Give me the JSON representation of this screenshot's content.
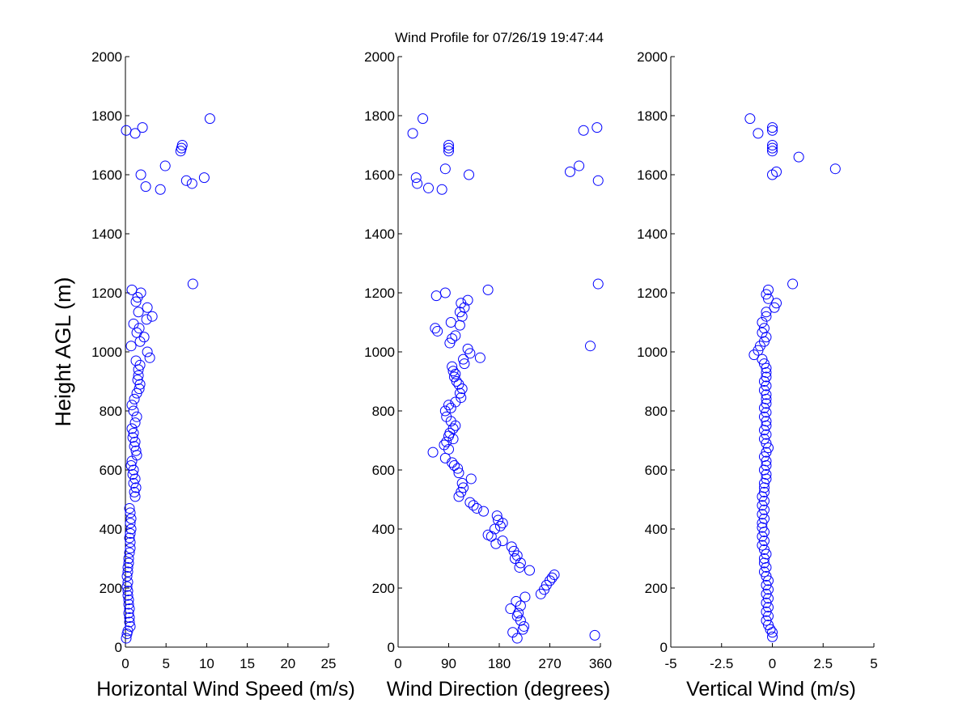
{
  "figure": {
    "title": "Wind Profile for  07/26/19 19:47:44"
  },
  "colors": {
    "marker": "#0000ff",
    "axis": "#000000",
    "background": "#ffffff"
  },
  "chart_data": [
    {
      "type": "scatter",
      "marker": "open-circle",
      "xlabel": "Horizontal Wind Speed (m/s)",
      "ylabel": "Height AGL (m)",
      "xlim": [
        0,
        25
      ],
      "ylim": [
        0,
        2000
      ],
      "xticks": [
        "0",
        "5",
        "10",
        "15",
        "20",
        "25"
      ],
      "yticks": [
        "0",
        "200",
        "400",
        "600",
        "800",
        "1000",
        "1200",
        "1400",
        "1600",
        "1800",
        "2000"
      ],
      "grid": false,
      "points": [
        [
          0.1,
          30
        ],
        [
          0.2,
          45
        ],
        [
          0.3,
          55
        ],
        [
          0.6,
          70
        ],
        [
          0.5,
          85
        ],
        [
          0.5,
          100
        ],
        [
          0.4,
          115
        ],
        [
          0.5,
          130
        ],
        [
          0.4,
          145
        ],
        [
          0.4,
          160
        ],
        [
          0.3,
          175
        ],
        [
          0.3,
          190
        ],
        [
          0.2,
          205
        ],
        [
          0.3,
          220
        ],
        [
          0.2,
          240
        ],
        [
          0.3,
          255
        ],
        [
          0.3,
          270
        ],
        [
          0.4,
          285
        ],
        [
          0.4,
          300
        ],
        [
          0.5,
          320
        ],
        [
          0.6,
          335
        ],
        [
          0.6,
          355
        ],
        [
          0.5,
          370
        ],
        [
          0.6,
          385
        ],
        [
          0.7,
          400
        ],
        [
          0.6,
          420
        ],
        [
          0.7,
          435
        ],
        [
          0.6,
          455
        ],
        [
          0.5,
          470
        ],
        [
          1.2,
          510
        ],
        [
          1.1,
          525
        ],
        [
          1.3,
          540
        ],
        [
          1.0,
          555
        ],
        [
          1.2,
          570
        ],
        [
          0.9,
          585
        ],
        [
          1.0,
          600
        ],
        [
          0.7,
          615
        ],
        [
          0.8,
          630
        ],
        [
          1.4,
          650
        ],
        [
          1.3,
          665
        ],
        [
          1.1,
          680
        ],
        [
          1.2,
          695
        ],
        [
          0.9,
          710
        ],
        [
          1.0,
          725
        ],
        [
          0.8,
          740
        ],
        [
          1.2,
          760
        ],
        [
          1.4,
          780
        ],
        [
          1.0,
          800
        ],
        [
          0.8,
          820
        ],
        [
          1.1,
          840
        ],
        [
          1.4,
          860
        ],
        [
          1.7,
          875
        ],
        [
          1.8,
          890
        ],
        [
          1.5,
          905
        ],
        [
          1.6,
          920
        ],
        [
          1.6,
          940
        ],
        [
          1.8,
          955
        ],
        [
          1.3,
          970
        ],
        [
          3.0,
          980
        ],
        [
          2.7,
          1000
        ],
        [
          0.7,
          1020
        ],
        [
          1.8,
          1035
        ],
        [
          2.3,
          1050
        ],
        [
          1.4,
          1065
        ],
        [
          1.7,
          1080
        ],
        [
          1.0,
          1095
        ],
        [
          2.6,
          1110
        ],
        [
          3.3,
          1120
        ],
        [
          1.6,
          1135
        ],
        [
          2.7,
          1150
        ],
        [
          1.3,
          1170
        ],
        [
          1.5,
          1185
        ],
        [
          1.9,
          1200
        ],
        [
          0.8,
          1210
        ],
        [
          8.3,
          1230
        ],
        [
          4.3,
          1550
        ],
        [
          2.5,
          1560
        ],
        [
          8.2,
          1570
        ],
        [
          7.5,
          1580
        ],
        [
          9.7,
          1590
        ],
        [
          1.9,
          1600
        ],
        [
          4.9,
          1630
        ],
        [
          6.8,
          1680
        ],
        [
          6.9,
          1690
        ],
        [
          7.0,
          1700
        ],
        [
          1.2,
          1740
        ],
        [
          0.1,
          1750
        ],
        [
          2.1,
          1760
        ],
        [
          10.4,
          1790
        ]
      ]
    },
    {
      "type": "scatter",
      "marker": "open-circle",
      "xlabel": "Wind Direction (degrees)",
      "ylabel": "",
      "xlim": [
        0,
        360
      ],
      "ylim": [
        0,
        2000
      ],
      "xticks": [
        "0",
        "90",
        "180",
        "270",
        "360"
      ],
      "yticks": [
        "0",
        "200",
        "400",
        "600",
        "800",
        "1000",
        "1200",
        "1400",
        "1600",
        "1800",
        "2000"
      ],
      "grid": false,
      "points": [
        [
          212,
          30
        ],
        [
          350,
          40
        ],
        [
          204,
          50
        ],
        [
          222,
          60
        ],
        [
          224,
          70
        ],
        [
          218,
          90
        ],
        [
          212,
          105
        ],
        [
          214,
          115
        ],
        [
          200,
          130
        ],
        [
          218,
          140
        ],
        [
          210,
          155
        ],
        [
          226,
          170
        ],
        [
          254,
          180
        ],
        [
          260,
          195
        ],
        [
          264,
          210
        ],
        [
          270,
          225
        ],
        [
          274,
          235
        ],
        [
          278,
          245
        ],
        [
          234,
          260
        ],
        [
          216,
          270
        ],
        [
          218,
          285
        ],
        [
          208,
          300
        ],
        [
          212,
          310
        ],
        [
          206,
          325
        ],
        [
          202,
          340
        ],
        [
          174,
          350
        ],
        [
          186,
          360
        ],
        [
          166,
          375
        ],
        [
          160,
          380
        ],
        [
          172,
          400
        ],
        [
          182,
          410
        ],
        [
          186,
          420
        ],
        [
          178,
          430
        ],
        [
          176,
          445
        ],
        [
          152,
          460
        ],
        [
          140,
          470
        ],
        [
          134,
          480
        ],
        [
          128,
          490
        ],
        [
          108,
          510
        ],
        [
          112,
          525
        ],
        [
          116,
          540
        ],
        [
          114,
          555
        ],
        [
          130,
          570
        ],
        [
          108,
          590
        ],
        [
          106,
          605
        ],
        [
          100,
          615
        ],
        [
          96,
          625
        ],
        [
          84,
          640
        ],
        [
          62,
          660
        ],
        [
          90,
          670
        ],
        [
          82,
          685
        ],
        [
          86,
          695
        ],
        [
          98,
          705
        ],
        [
          90,
          715
        ],
        [
          92,
          725
        ],
        [
          98,
          740
        ],
        [
          102,
          750
        ],
        [
          94,
          765
        ],
        [
          86,
          780
        ],
        [
          84,
          800
        ],
        [
          94,
          810
        ],
        [
          90,
          820
        ],
        [
          102,
          830
        ],
        [
          112,
          845
        ],
        [
          110,
          860
        ],
        [
          114,
          875
        ],
        [
          108,
          890
        ],
        [
          104,
          900
        ],
        [
          100,
          915
        ],
        [
          102,
          925
        ],
        [
          98,
          935
        ],
        [
          96,
          950
        ],
        [
          118,
          960
        ],
        [
          116,
          975
        ],
        [
          146,
          980
        ],
        [
          128,
          995
        ],
        [
          124,
          1010
        ],
        [
          342,
          1020
        ],
        [
          92,
          1030
        ],
        [
          96,
          1045
        ],
        [
          102,
          1055
        ],
        [
          70,
          1070
        ],
        [
          66,
          1080
        ],
        [
          110,
          1090
        ],
        [
          94,
          1100
        ],
        [
          114,
          1120
        ],
        [
          110,
          1135
        ],
        [
          118,
          1150
        ],
        [
          112,
          1165
        ],
        [
          124,
          1175
        ],
        [
          68,
          1190
        ],
        [
          84,
          1200
        ],
        [
          160,
          1210
        ],
        [
          356,
          1230
        ],
        [
          78,
          1550
        ],
        [
          54,
          1555
        ],
        [
          34,
          1570
        ],
        [
          32,
          1590
        ],
        [
          126,
          1600
        ],
        [
          84,
          1620
        ],
        [
          306,
          1610
        ],
        [
          322,
          1630
        ],
        [
          90,
          1680
        ],
        [
          90,
          1690
        ],
        [
          90,
          1700
        ],
        [
          26,
          1740
        ],
        [
          330,
          1750
        ],
        [
          354,
          1760
        ],
        [
          44,
          1790
        ],
        [
          356,
          1580
        ]
      ]
    },
    {
      "type": "scatter",
      "marker": "open-circle",
      "xlabel": "Vertical Wind (m/s)",
      "ylabel": "",
      "xlim": [
        -5,
        5
      ],
      "ylim": [
        0,
        2000
      ],
      "xticks": [
        "-5",
        "-2.5",
        "0",
        "2.5",
        "5"
      ],
      "yticks": [
        "0",
        "200",
        "400",
        "600",
        "800",
        "1000",
        "1200",
        "1400",
        "1600",
        "1800",
        "2000"
      ],
      "grid": false,
      "points": [
        [
          0,
          35
        ],
        [
          0,
          50
        ],
        [
          -0.1,
          60
        ],
        [
          -0.2,
          75
        ],
        [
          -0.3,
          90
        ],
        [
          -0.2,
          105
        ],
        [
          -0.3,
          120
        ],
        [
          -0.2,
          135
        ],
        [
          -0.3,
          150
        ],
        [
          -0.2,
          165
        ],
        [
          -0.3,
          180
        ],
        [
          -0.2,
          195
        ],
        [
          -0.3,
          210
        ],
        [
          -0.2,
          225
        ],
        [
          -0.3,
          240
        ],
        [
          -0.4,
          255
        ],
        [
          -0.3,
          270
        ],
        [
          -0.4,
          285
        ],
        [
          -0.4,
          300
        ],
        [
          -0.3,
          315
        ],
        [
          -0.4,
          330
        ],
        [
          -0.5,
          345
        ],
        [
          -0.4,
          360
        ],
        [
          -0.5,
          375
        ],
        [
          -0.4,
          390
        ],
        [
          -0.5,
          405
        ],
        [
          -0.5,
          420
        ],
        [
          -0.4,
          435
        ],
        [
          -0.5,
          450
        ],
        [
          -0.4,
          465
        ],
        [
          -0.5,
          480
        ],
        [
          -0.4,
          495
        ],
        [
          -0.5,
          510
        ],
        [
          -0.4,
          525
        ],
        [
          -0.4,
          540
        ],
        [
          -0.4,
          555
        ],
        [
          -0.3,
          570
        ],
        [
          -0.3,
          585
        ],
        [
          -0.4,
          600
        ],
        [
          -0.3,
          615
        ],
        [
          -0.3,
          630
        ],
        [
          -0.4,
          645
        ],
        [
          -0.3,
          660
        ],
        [
          -0.2,
          675
        ],
        [
          -0.3,
          690
        ],
        [
          -0.4,
          705
        ],
        [
          -0.3,
          720
        ],
        [
          -0.4,
          735
        ],
        [
          -0.3,
          750
        ],
        [
          -0.3,
          765
        ],
        [
          -0.4,
          780
        ],
        [
          -0.3,
          795
        ],
        [
          -0.4,
          810
        ],
        [
          -0.3,
          825
        ],
        [
          -0.3,
          840
        ],
        [
          -0.3,
          855
        ],
        [
          -0.4,
          870
        ],
        [
          -0.3,
          885
        ],
        [
          -0.4,
          900
        ],
        [
          -0.3,
          915
        ],
        [
          -0.3,
          930
        ],
        [
          -0.3,
          945
        ],
        [
          -0.4,
          960
        ],
        [
          -0.5,
          975
        ],
        [
          -0.9,
          990
        ],
        [
          -0.7,
          1005
        ],
        [
          -0.6,
          1020
        ],
        [
          -0.4,
          1035
        ],
        [
          -0.3,
          1050
        ],
        [
          -0.5,
          1065
        ],
        [
          -0.4,
          1080
        ],
        [
          -0.5,
          1100
        ],
        [
          -0.3,
          1120
        ],
        [
          -0.3,
          1135
        ],
        [
          0.1,
          1150
        ],
        [
          0.2,
          1165
        ],
        [
          -0.2,
          1180
        ],
        [
          -0.3,
          1195
        ],
        [
          -0.2,
          1210
        ],
        [
          1,
          1230
        ],
        [
          3.1,
          1620
        ],
        [
          0.2,
          1610
        ],
        [
          0,
          1600
        ],
        [
          1.3,
          1660
        ],
        [
          0,
          1680
        ],
        [
          0,
          1690
        ],
        [
          0,
          1700
        ],
        [
          -0.7,
          1740
        ],
        [
          0,
          1750
        ],
        [
          0,
          1760
        ],
        [
          -1.1,
          1790
        ]
      ]
    }
  ]
}
